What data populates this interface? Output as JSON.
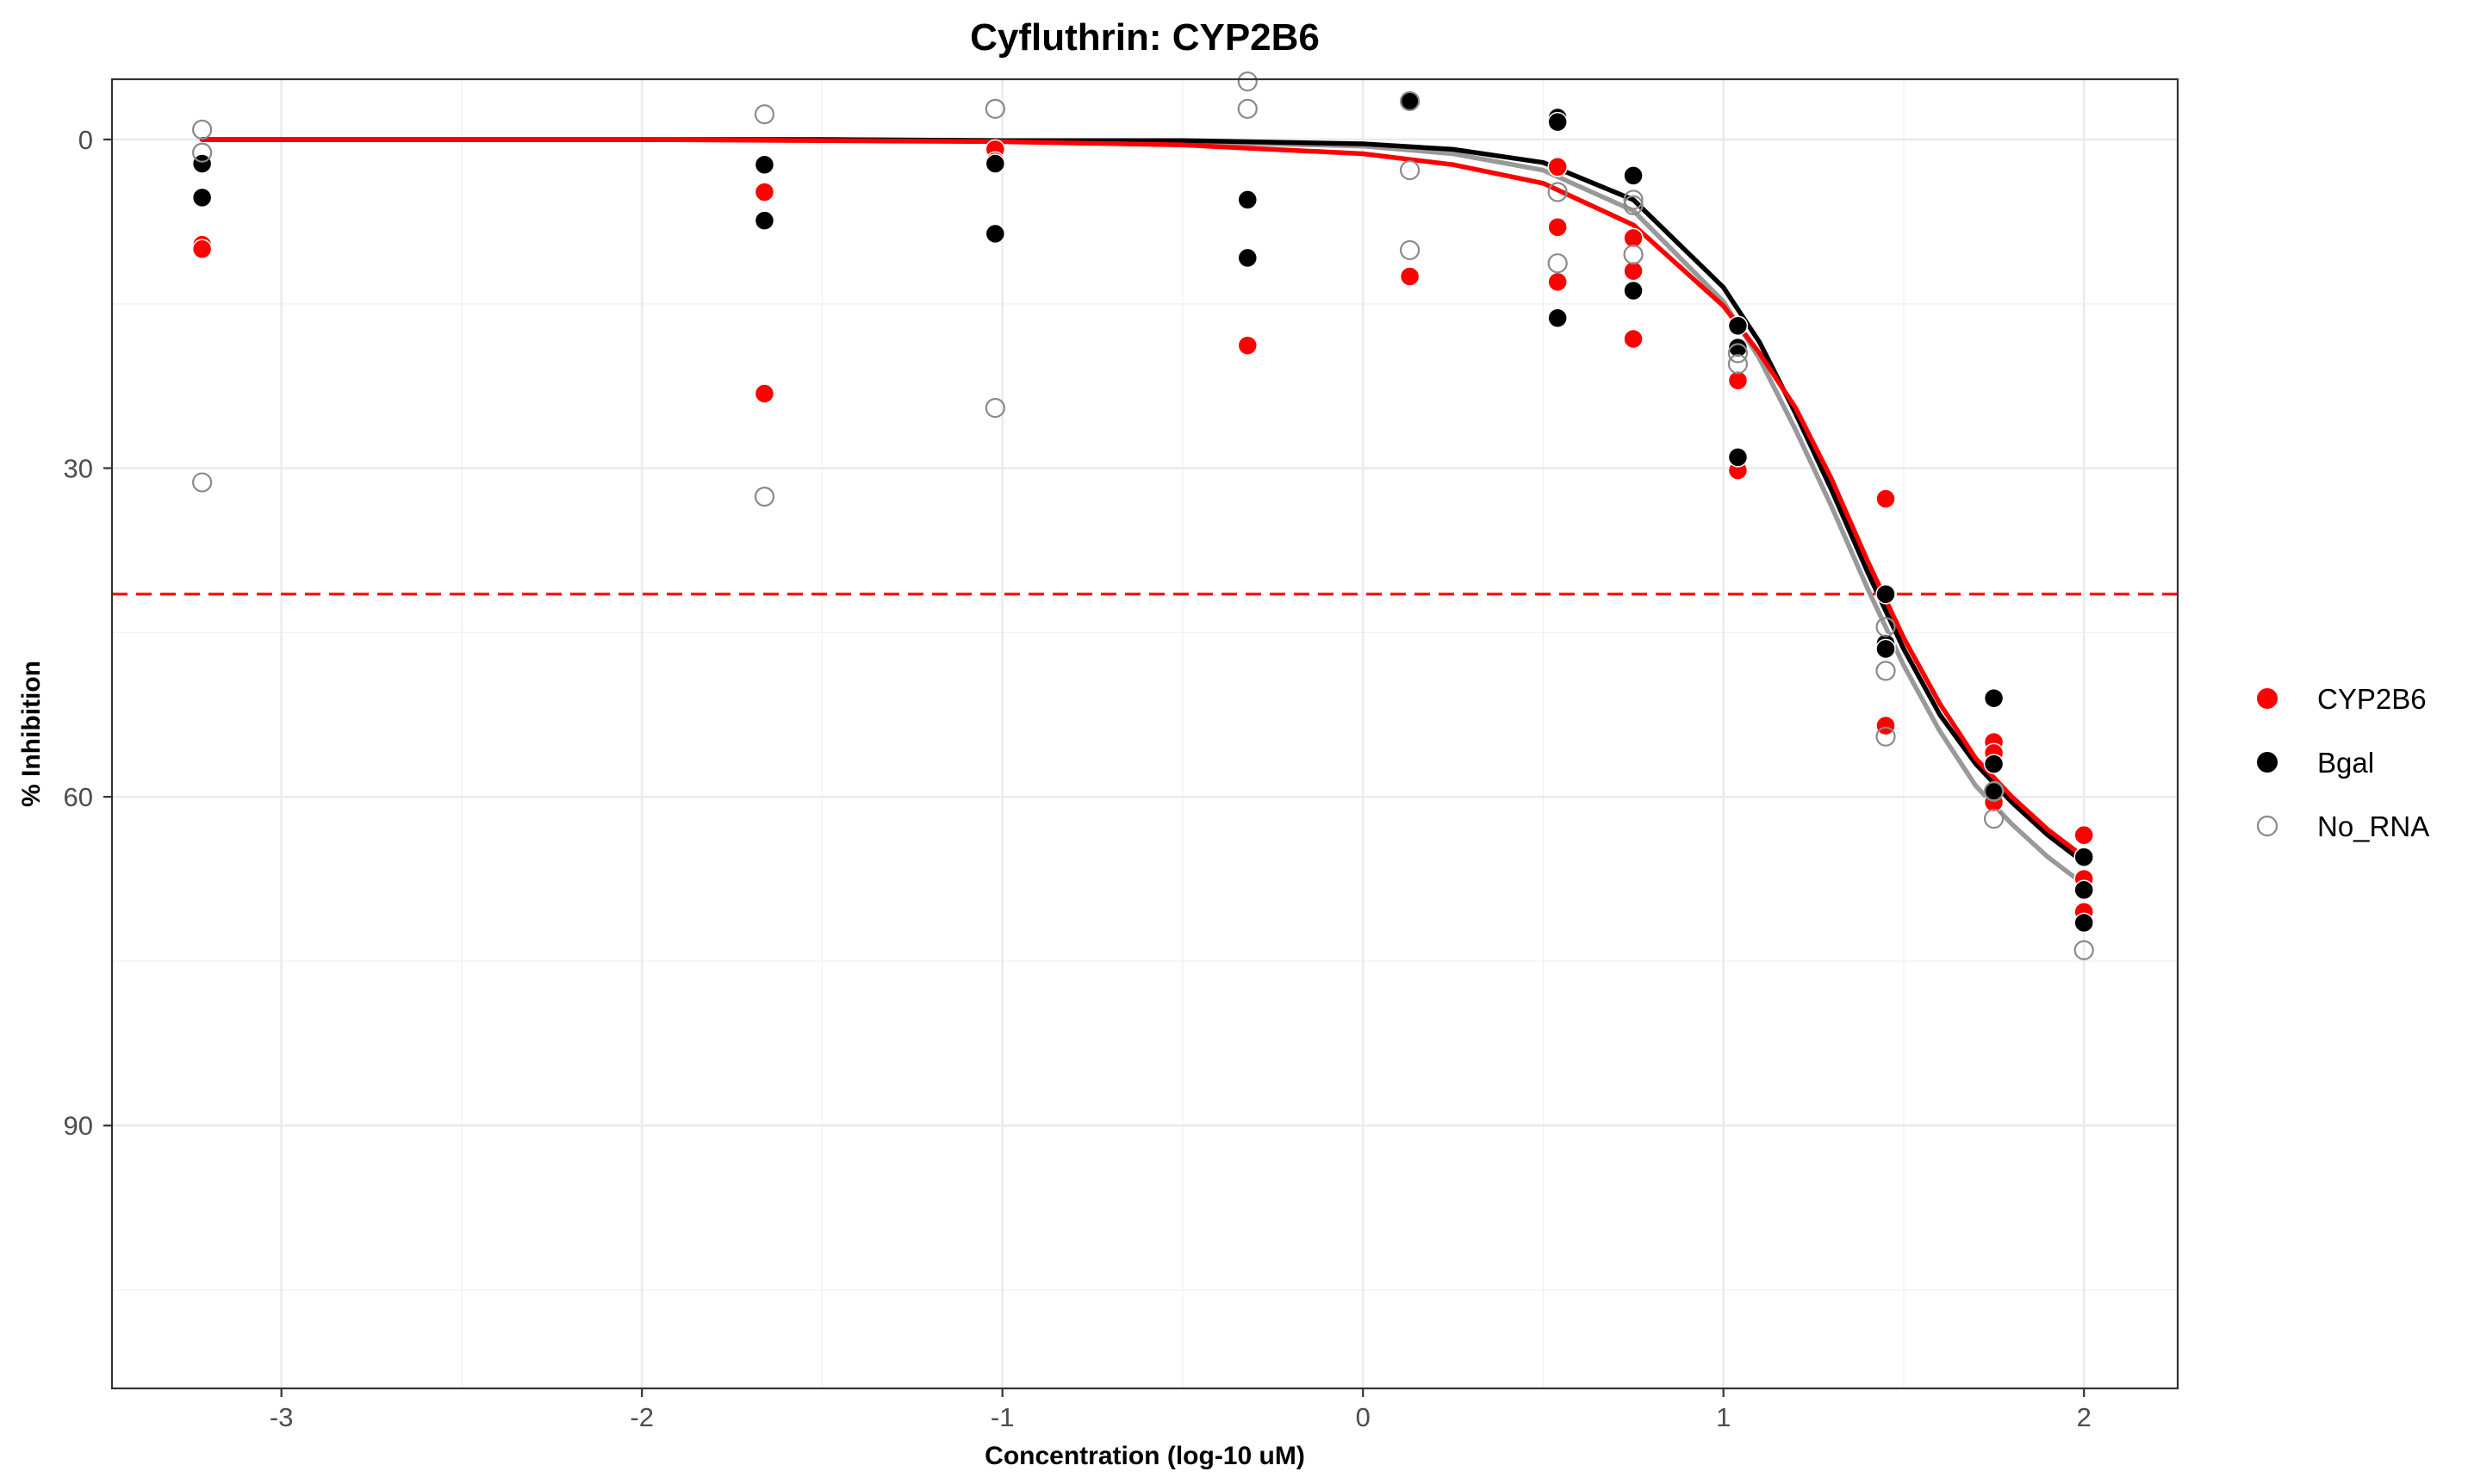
{
  "chart_data": {
    "type": "scatter",
    "title": "Cyfluthrin: CYP2B6",
    "xlabel": "Concentration (log-10 uM)",
    "ylabel": "% Inhibition",
    "xlim": [
      -3.47,
      2.26
    ],
    "ylim": [
      -5.5,
      114
    ],
    "y_reversed": true,
    "grid": true,
    "x_ticks": [
      -3,
      -2,
      -1,
      0,
      1,
      2
    ],
    "y_ticks": [
      0,
      30,
      60,
      90
    ],
    "y_minor_ticks": [
      15,
      45,
      75,
      105
    ],
    "x_minor_ticks": [
      -2.5,
      -1.5,
      -0.5,
      0.5,
      1.5
    ],
    "reference_line": {
      "y": 41.5,
      "color": "#ff0000",
      "style": "dashed"
    },
    "legend_position": "right",
    "series": [
      {
        "name": "CYP2B6",
        "color": "#ff0000",
        "marker": "filled-circle",
        "points": [
          [
            -3.22,
            9.6
          ],
          [
            -3.22,
            10.0
          ],
          [
            -1.66,
            4.8
          ],
          [
            -1.66,
            23.2
          ],
          [
            -1.02,
            0.9
          ],
          [
            -1.02,
            2.0
          ],
          [
            -1.02,
            8.6
          ],
          [
            -0.32,
            18.8
          ],
          [
            0.13,
            12.5
          ],
          [
            0.54,
            2.5
          ],
          [
            0.54,
            8.0
          ],
          [
            0.54,
            13.0
          ],
          [
            0.75,
            9.0
          ],
          [
            0.75,
            12.0
          ],
          [
            0.75,
            18.2
          ],
          [
            1.04,
            22.0
          ],
          [
            1.04,
            30.2
          ],
          [
            1.45,
            32.8
          ],
          [
            1.45,
            53.5
          ],
          [
            1.75,
            55.0
          ],
          [
            1.75,
            56.0
          ],
          [
            1.75,
            60.5
          ],
          [
            2.0,
            63.5
          ],
          [
            2.0,
            67.5
          ],
          [
            2.0,
            70.5
          ]
        ],
        "curve": [
          [
            -3.22,
            0.0
          ],
          [
            -2.5,
            0.0
          ],
          [
            -2.0,
            0.0
          ],
          [
            -1.5,
            0.1
          ],
          [
            -1.0,
            0.2
          ],
          [
            -0.5,
            0.5
          ],
          [
            0.0,
            1.3
          ],
          [
            0.25,
            2.3
          ],
          [
            0.5,
            4.0
          ],
          [
            0.75,
            7.8
          ],
          [
            1.0,
            15.2
          ],
          [
            1.1,
            19.5
          ],
          [
            1.2,
            24.5
          ],
          [
            1.3,
            31.0
          ],
          [
            1.4,
            38.5
          ],
          [
            1.5,
            45.5
          ],
          [
            1.6,
            51.5
          ],
          [
            1.7,
            56.5
          ],
          [
            1.8,
            60.0
          ],
          [
            1.9,
            63.0
          ],
          [
            2.0,
            65.5
          ]
        ]
      },
      {
        "name": "Bgal",
        "color": "#000000",
        "marker": "filled-circle",
        "points": [
          [
            -3.22,
            2.2
          ],
          [
            -3.22,
            5.3
          ],
          [
            -1.66,
            2.3
          ],
          [
            -1.66,
            7.4
          ],
          [
            -1.02,
            2.2
          ],
          [
            -1.02,
            8.6
          ],
          [
            -0.32,
            5.5
          ],
          [
            -0.32,
            10.8
          ],
          [
            0.13,
            -3.5
          ],
          [
            0.54,
            -2.0
          ],
          [
            0.54,
            -1.6
          ],
          [
            0.54,
            16.3
          ],
          [
            0.75,
            3.3
          ],
          [
            0.75,
            13.8
          ],
          [
            1.04,
            17.0
          ],
          [
            1.04,
            19.0
          ],
          [
            1.04,
            29.0
          ],
          [
            1.45,
            41.5
          ],
          [
            1.45,
            46.0
          ],
          [
            1.45,
            46.5
          ],
          [
            1.75,
            51.0
          ],
          [
            1.75,
            57.0
          ],
          [
            1.75,
            59.5
          ],
          [
            2.0,
            65.5
          ],
          [
            2.0,
            68.5
          ],
          [
            2.0,
            71.5
          ]
        ],
        "curve": [
          [
            -3.22,
            0.0
          ],
          [
            -2.5,
            0.0
          ],
          [
            -2.0,
            0.0
          ],
          [
            -1.5,
            0.0
          ],
          [
            -1.0,
            0.1
          ],
          [
            -0.5,
            0.1
          ],
          [
            0.0,
            0.4
          ],
          [
            0.25,
            0.9
          ],
          [
            0.5,
            2.1
          ],
          [
            0.75,
            5.5
          ],
          [
            1.0,
            13.5
          ],
          [
            1.1,
            18.5
          ],
          [
            1.2,
            25.0
          ],
          [
            1.3,
            32.0
          ],
          [
            1.4,
            39.5
          ],
          [
            1.5,
            46.5
          ],
          [
            1.6,
            52.5
          ],
          [
            1.7,
            57.0
          ],
          [
            1.8,
            60.5
          ],
          [
            1.9,
            63.5
          ],
          [
            2.0,
            66.0
          ]
        ]
      },
      {
        "name": "No_RNA",
        "color": "#8a8a8a",
        "marker": "open-circle",
        "points": [
          [
            -3.22,
            -0.9
          ],
          [
            -3.22,
            1.2
          ],
          [
            -3.22,
            31.3
          ],
          [
            -1.66,
            -2.3
          ],
          [
            -1.66,
            32.6
          ],
          [
            -1.02,
            -2.8
          ],
          [
            -1.02,
            24.5
          ],
          [
            -0.32,
            -5.3
          ],
          [
            -0.32,
            -2.8
          ],
          [
            0.13,
            -3.5
          ],
          [
            0.13,
            2.8
          ],
          [
            0.13,
            10.1
          ],
          [
            0.54,
            4.8
          ],
          [
            0.54,
            11.3
          ],
          [
            0.75,
            5.5
          ],
          [
            0.75,
            6.0
          ],
          [
            0.75,
            10.5
          ],
          [
            1.04,
            19.5
          ],
          [
            1.04,
            20.5
          ],
          [
            1.45,
            44.5
          ],
          [
            1.45,
            48.5
          ],
          [
            1.45,
            54.5
          ],
          [
            1.75,
            59.5
          ],
          [
            1.75,
            62.0
          ],
          [
            2.0,
            74.0
          ]
        ],
        "curve": [
          [
            -3.22,
            0.0
          ],
          [
            -2.5,
            0.0
          ],
          [
            -2.0,
            0.0
          ],
          [
            -1.5,
            0.0
          ],
          [
            -1.0,
            0.1
          ],
          [
            -0.5,
            0.2
          ],
          [
            0.0,
            0.6
          ],
          [
            0.25,
            1.3
          ],
          [
            0.5,
            2.8
          ],
          [
            0.75,
            6.5
          ],
          [
            1.0,
            14.8
          ],
          [
            1.1,
            20.0
          ],
          [
            1.2,
            26.5
          ],
          [
            1.3,
            33.5
          ],
          [
            1.4,
            41.0
          ],
          [
            1.5,
            48.0
          ],
          [
            1.6,
            54.0
          ],
          [
            1.7,
            59.0
          ],
          [
            1.8,
            62.5
          ],
          [
            1.9,
            65.5
          ],
          [
            2.0,
            68.0
          ]
        ]
      }
    ]
  }
}
